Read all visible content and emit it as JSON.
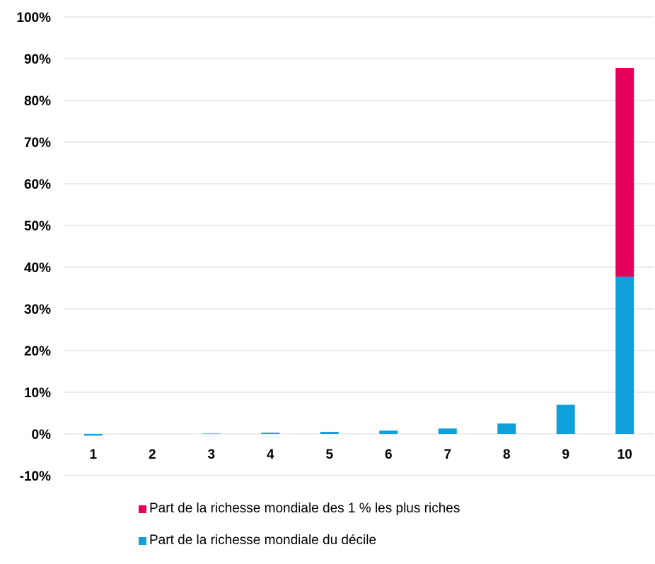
{
  "colors": {
    "top1": "#E5005B",
    "decile": "#0F9FDA",
    "grid": "#d9d9d9"
  },
  "chart_data": {
    "type": "bar",
    "stacked": true,
    "categories": [
      "1",
      "2",
      "3",
      "4",
      "5",
      "6",
      "7",
      "8",
      "9",
      "10"
    ],
    "series": [
      {
        "name": "Part de la richesse mondiale du décile",
        "values": [
          -0.4,
          0.0,
          0.1,
          0.3,
          0.5,
          0.8,
          1.3,
          2.5,
          7.0,
          37.7
        ]
      },
      {
        "name": "Part de la richesse mondiale des 1 % les plus riches",
        "values": [
          0,
          0,
          0,
          0,
          0,
          0,
          0,
          0,
          0,
          50.1
        ]
      }
    ],
    "ylim": [
      -10,
      100
    ],
    "yticks": [
      "-10%",
      "0%",
      "10%",
      "20%",
      "30%",
      "40%",
      "50%",
      "60%",
      "70%",
      "80%",
      "90%",
      "100%"
    ],
    "grid": true,
    "legend_position": "bottom"
  },
  "legend": [
    {
      "label": "Part de la richesse mondiale des 1 % les plus riches",
      "color": "#E5005B"
    },
    {
      "label": "Part de la richesse mondiale du décile",
      "color": "#0F9FDA"
    }
  ]
}
